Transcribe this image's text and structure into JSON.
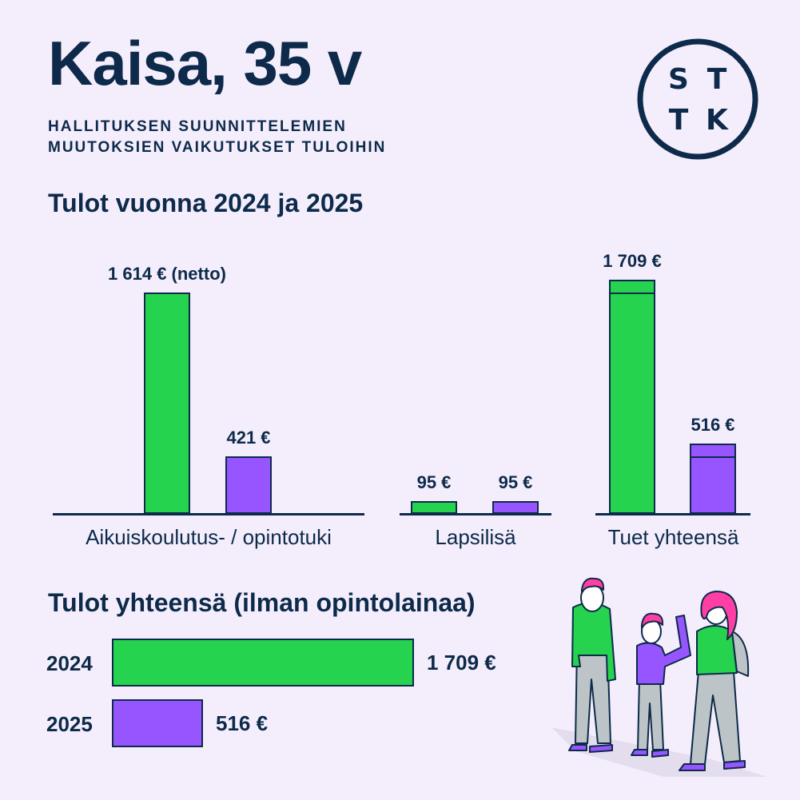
{
  "header": {
    "title": "Kaisa, 35 v",
    "subtitle_line1": "HALLITUKSEN SUUNNITTELEMIEN",
    "subtitle_line2": "MUUTOKSIEN VAIKUTUKSET TULOIHIN"
  },
  "logo": {
    "letters": [
      "S",
      "T",
      "T",
      "K"
    ]
  },
  "colors": {
    "year_2024": "#25d34f",
    "year_2025": "#9755ff",
    "ink": "#0d2a4a",
    "background": "#f4eefc"
  },
  "chart_data": [
    {
      "type": "bar",
      "title": "Tulot vuonna 2024 ja 2025",
      "categories": [
        "Aikuiskoulutus- / opintotuki",
        "Lapsilisä",
        "Tuet yhteensä"
      ],
      "series": [
        {
          "values": [
            1614,
            95,
            1709
          ],
          "labels": [
            "1 614 € (netto)",
            "95 €",
            "1 709 €"
          ]
        },
        {
          "values": [
            421,
            95,
            516
          ],
          "labels": [
            "421 €",
            "95 €",
            "516 €"
          ]
        }
      ],
      "stacked_segments_in_total": {
        "lapsilisa_segment": 95
      },
      "ylim": [
        0,
        1750
      ],
      "grid": false,
      "legend": "none"
    },
    {
      "type": "bar",
      "orientation": "horizontal",
      "title": "Tulot yhteensä (ilman opintolainaa)",
      "categories": [
        "2024",
        "2025"
      ],
      "values": [
        1709,
        516
      ],
      "labels": [
        "1 709 €",
        "516 €"
      ],
      "grid": false,
      "legend": "none"
    }
  ]
}
